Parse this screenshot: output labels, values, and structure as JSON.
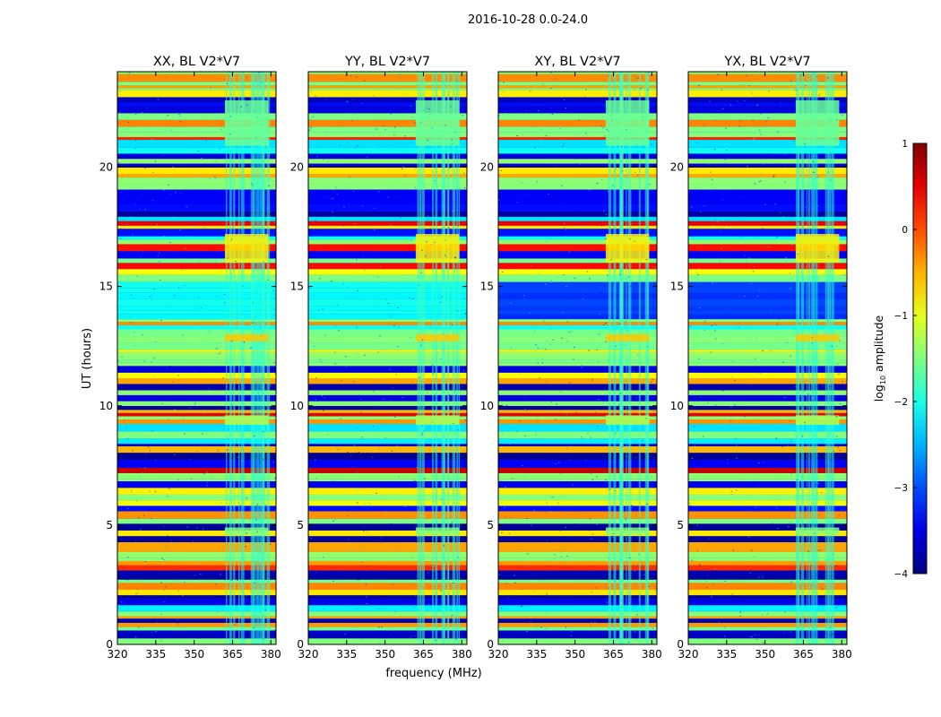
{
  "chart_data": {
    "type": "heatmap",
    "suptitle": "2016-10-28 0.0-24.0",
    "shared_ylabel": "UT (hours)",
    "shared_xlabel": "frequency (MHz)",
    "xlim": [
      320,
      382
    ],
    "ylim": [
      0,
      24
    ],
    "xticks": [
      320,
      335,
      350,
      365,
      380
    ],
    "yticks": [
      0,
      5,
      10,
      15,
      20
    ],
    "panels": [
      {
        "title": "XX, BL V2*V7"
      },
      {
        "title": "YY, BL V2*V7"
      },
      {
        "title": "XY, BL V2*V7"
      },
      {
        "title": "YX, BL V2*V7"
      }
    ],
    "rfi_band_mhz": [
      362,
      379
    ],
    "colorbar": {
      "label": "log",
      "label_sub": "10",
      "label_rest": " amplitude",
      "min": -4,
      "max": 1,
      "ticks": [
        1,
        0,
        -1,
        -2,
        -3,
        -4
      ],
      "tick_labels": [
        "1",
        "0",
        "−1",
        "−2",
        "−3",
        "−4"
      ],
      "colormap": "jet"
    }
  }
}
